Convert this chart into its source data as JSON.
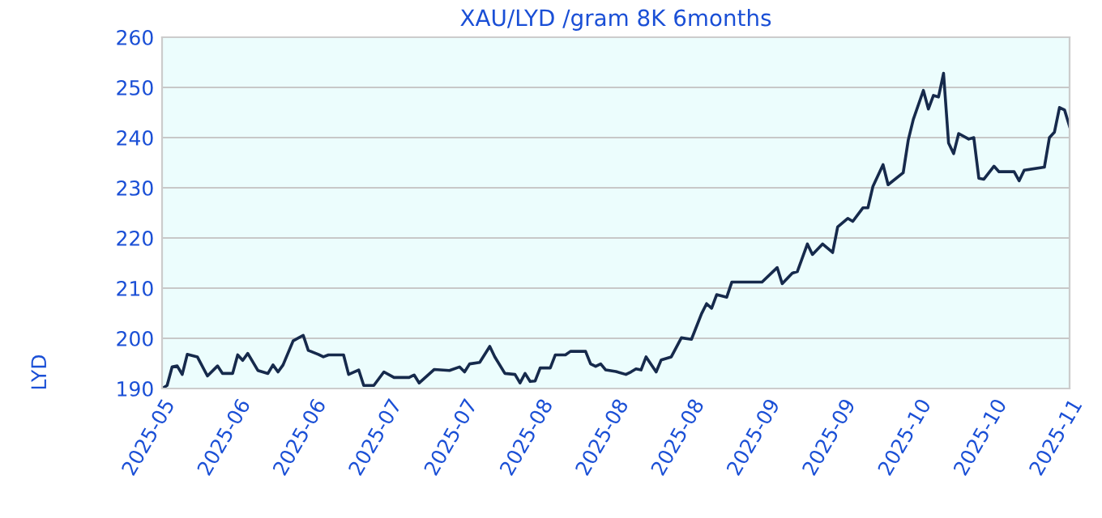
{
  "chart_data": {
    "type": "line",
    "title": "XAU/LYD /gram 8K 6months",
    "ylabel": "LYD",
    "x": [
      "2025-05-18",
      "2025-05-19",
      "2025-05-20",
      "2025-05-21",
      "2025-05-22",
      "2025-05-23",
      "2025-05-25",
      "2025-05-27",
      "2025-05-29",
      "2025-05-30",
      "2025-06-01",
      "2025-06-02",
      "2025-06-03",
      "2025-06-04",
      "2025-06-06",
      "2025-06-08",
      "2025-06-09",
      "2025-06-10",
      "2025-06-11",
      "2025-06-13",
      "2025-06-15",
      "2025-06-16",
      "2025-06-18",
      "2025-06-19",
      "2025-06-20",
      "2025-06-23",
      "2025-06-24",
      "2025-06-26",
      "2025-06-27",
      "2025-06-29",
      "2025-07-01",
      "2025-07-03",
      "2025-07-06",
      "2025-07-07",
      "2025-07-08",
      "2025-07-11",
      "2025-07-14",
      "2025-07-16",
      "2025-07-17",
      "2025-07-18",
      "2025-07-20",
      "2025-07-22",
      "2025-07-23",
      "2025-07-25",
      "2025-07-27",
      "2025-07-28",
      "2025-07-29",
      "2025-07-30",
      "2025-07-31",
      "2025-08-01",
      "2025-08-03",
      "2025-08-04",
      "2025-08-06",
      "2025-08-07",
      "2025-08-10",
      "2025-08-11",
      "2025-08-12",
      "2025-08-13",
      "2025-08-14",
      "2025-08-16",
      "2025-08-18",
      "2025-08-19",
      "2025-08-20",
      "2025-08-21",
      "2025-08-22",
      "2025-08-24",
      "2025-08-25",
      "2025-08-27",
      "2025-08-29",
      "2025-08-31",
      "2025-09-02",
      "2025-09-03",
      "2025-09-04",
      "2025-09-05",
      "2025-09-07",
      "2025-09-08",
      "2025-09-11",
      "2025-09-14",
      "2025-09-17",
      "2025-09-18",
      "2025-09-20",
      "2025-09-21",
      "2025-09-23",
      "2025-09-24",
      "2025-09-26",
      "2025-09-28",
      "2025-09-29",
      "2025-10-01",
      "2025-10-02",
      "2025-10-04",
      "2025-10-05",
      "2025-10-06",
      "2025-10-08",
      "2025-10-09",
      "2025-10-12",
      "2025-10-13",
      "2025-10-14",
      "2025-10-16",
      "2025-10-17",
      "2025-10-18",
      "2025-10-19",
      "2025-10-20",
      "2025-10-21",
      "2025-10-22",
      "2025-10-23",
      "2025-10-25",
      "2025-10-26",
      "2025-10-27",
      "2025-10-28",
      "2025-10-30",
      "2025-10-31",
      "2025-11-03",
      "2025-11-04",
      "2025-11-05",
      "2025-11-09",
      "2025-11-10",
      "2025-11-11",
      "2025-11-12",
      "2025-11-13",
      "2025-11-14"
    ],
    "series": [
      {
        "color": "#162a4c",
        "values": [
          190.0,
          190.6,
          194.3,
          194.5,
          192.8,
          196.8,
          196.3,
          192.5,
          194.5,
          193.0,
          193.0,
          196.7,
          195.6,
          197.0,
          193.6,
          193.0,
          194.7,
          193.3,
          194.7,
          199.5,
          200.6,
          197.6,
          196.8,
          196.3,
          196.7,
          196.7,
          192.8,
          193.7,
          190.6,
          190.6,
          193.3,
          192.2,
          192.2,
          192.7,
          191.1,
          193.8,
          193.6,
          194.3,
          193.3,
          194.9,
          195.2,
          198.4,
          196.3,
          193.0,
          192.8,
          191.1,
          193.0,
          191.4,
          191.5,
          194.1,
          194.1,
          196.7,
          196.7,
          197.4,
          197.4,
          194.9,
          194.4,
          194.9,
          193.7,
          193.4,
          192.8,
          193.3,
          193.9,
          193.7,
          196.3,
          193.3,
          195.7,
          196.3,
          200.1,
          199.8,
          204.9,
          206.9,
          206.0,
          208.7,
          208.2,
          211.2,
          211.2,
          211.2,
          214.1,
          210.9,
          213.0,
          213.3,
          218.8,
          216.7,
          218.8,
          217.1,
          222.2,
          223.9,
          223.3,
          226.0,
          226.0,
          230.3,
          234.6,
          230.6,
          233.0,
          239.5,
          243.6,
          249.4,
          245.7,
          248.4,
          248.1,
          252.8,
          238.9,
          236.8,
          240.8,
          239.7,
          240.0,
          231.9,
          231.7,
          234.3,
          233.2,
          233.2,
          231.4,
          233.5,
          234.1,
          240.0,
          241.1,
          246.0,
          245.5,
          242.2
        ]
      }
    ],
    "xlim": [
      "2025-05-18",
      "2025-11-14"
    ],
    "xticks": [
      {
        "value": "2025-05-18",
        "label": "2025-05"
      },
      {
        "value": "2025-06-02",
        "label": "2025-06"
      },
      {
        "value": "2025-06-17",
        "label": "2025-06"
      },
      {
        "value": "2025-07-02",
        "label": "2025-07"
      },
      {
        "value": "2025-07-17",
        "label": "2025-07"
      },
      {
        "value": "2025-08-01",
        "label": "2025-08"
      },
      {
        "value": "2025-08-16",
        "label": "2025-08"
      },
      {
        "value": "2025-08-31",
        "label": "2025-08"
      },
      {
        "value": "2025-09-15",
        "label": "2025-09"
      },
      {
        "value": "2025-09-30",
        "label": "2025-09"
      },
      {
        "value": "2025-10-15",
        "label": "2025-10"
      },
      {
        "value": "2025-10-30",
        "label": "2025-10"
      },
      {
        "value": "2025-11-14",
        "label": "2025-11"
      }
    ],
    "ylim": [
      190,
      260
    ],
    "yticks": [
      190,
      200,
      210,
      220,
      230,
      240,
      250,
      260
    ],
    "grid": "y",
    "legend": false,
    "marker": "none",
    "line_style": "solid"
  }
}
